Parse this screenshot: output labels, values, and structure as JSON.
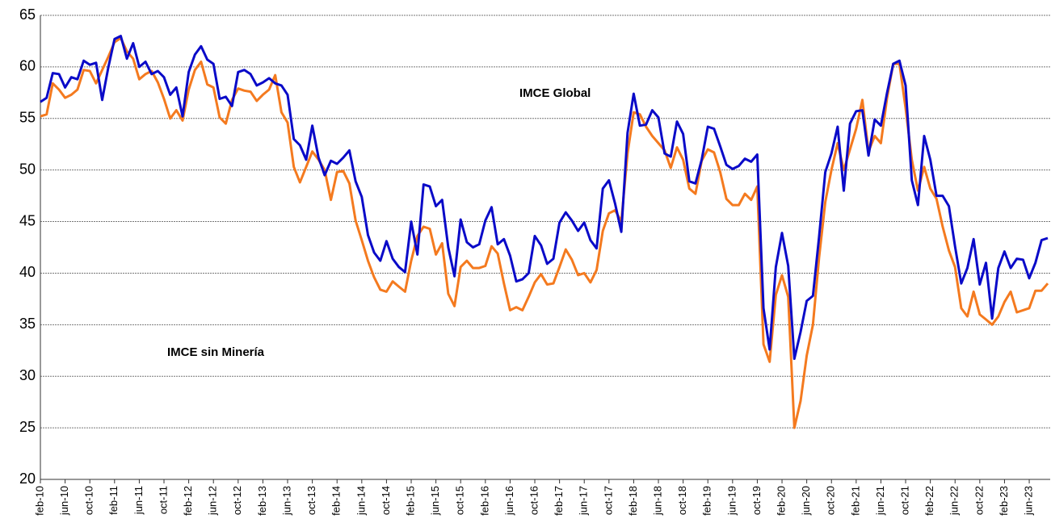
{
  "chart_data": {
    "type": "line",
    "categories": [
      "feb-10",
      null,
      null,
      null,
      "jun-10",
      null,
      null,
      null,
      "oct-10",
      null,
      null,
      null,
      "feb-11",
      null,
      null,
      null,
      "jun-11",
      null,
      null,
      null,
      "oct-11",
      null,
      null,
      null,
      "feb-12",
      null,
      null,
      null,
      "jun-12",
      null,
      null,
      null,
      "oct-12",
      null,
      null,
      null,
      "feb-13",
      null,
      null,
      null,
      "jun-13",
      null,
      null,
      null,
      "oct-13",
      null,
      null,
      null,
      "feb-14",
      null,
      null,
      null,
      "jun-14",
      null,
      null,
      null,
      "oct-14",
      null,
      null,
      null,
      "feb-15",
      null,
      null,
      null,
      "jun-15",
      null,
      null,
      null,
      "oct-15",
      null,
      null,
      null,
      "feb-16",
      null,
      null,
      null,
      "jun-16",
      null,
      null,
      null,
      "oct-16",
      null,
      null,
      null,
      "feb-17",
      null,
      null,
      null,
      "jun-17",
      null,
      null,
      null,
      "oct-17",
      null,
      null,
      null,
      "feb-18",
      null,
      null,
      null,
      "jun-18",
      null,
      null,
      null,
      "oct-18",
      null,
      null,
      null,
      "feb-19",
      null,
      null,
      null,
      "jun-19",
      null,
      null,
      null,
      "oct-19",
      null,
      null,
      null,
      "feb-20",
      null,
      null,
      null,
      "jun-20",
      null,
      null,
      null,
      "oct-20",
      null,
      null,
      null,
      "feb-21",
      null,
      null,
      null,
      "jun-21",
      null,
      null,
      null,
      "oct-21",
      null,
      null,
      null,
      "feb-22",
      null,
      null,
      null,
      "jun-22",
      null,
      null,
      null,
      "oct-22",
      null,
      null,
      null,
      "feb-23",
      null,
      null,
      null,
      "jun-23",
      null,
      null,
      null
    ],
    "series": [
      {
        "name": "IMCE Global",
        "color": "#0a0ac8",
        "values": [
          56.6,
          57.0,
          59.4,
          59.3,
          58.0,
          59.0,
          58.8,
          60.6,
          60.2,
          60.4,
          56.8,
          60.0,
          62.7,
          63.0,
          60.8,
          62.3,
          60.0,
          60.5,
          59.3,
          59.6,
          59.0,
          57.3,
          58.0,
          55.2,
          59.5,
          61.2,
          62.0,
          60.7,
          60.3,
          56.9,
          57.1,
          56.2,
          59.5,
          59.7,
          59.3,
          58.2,
          58.5,
          58.9,
          58.4,
          58.2,
          57.3,
          53.0,
          52.4,
          51.0,
          54.3,
          51.2,
          49.5,
          50.9,
          50.6,
          51.2,
          51.9,
          48.9,
          47.4,
          43.7,
          42.0,
          41.2,
          43.1,
          41.4,
          40.6,
          40.1,
          45.0,
          41.8,
          48.6,
          48.4,
          46.5,
          47.1,
          42.5,
          39.7,
          45.2,
          43.0,
          42.5,
          42.8,
          45.1,
          46.4,
          42.8,
          43.3,
          41.7,
          39.2,
          39.4,
          40.0,
          43.6,
          42.7,
          40.9,
          41.4,
          44.9,
          45.9,
          45.1,
          44.1,
          44.9,
          43.2,
          42.4,
          48.2,
          49.0,
          46.7,
          44.0,
          53.6,
          57.4,
          54.3,
          54.4,
          55.8,
          55.1,
          51.6,
          51.3,
          54.7,
          53.5,
          48.9,
          48.7,
          51.0,
          54.2,
          54.0,
          52.3,
          50.5,
          50.1,
          50.4,
          51.1,
          50.8,
          51.5,
          36.6,
          32.6,
          40.6,
          43.9,
          40.7,
          31.7,
          34.3,
          37.3,
          37.8,
          43.5,
          49.8,
          51.6,
          54.2,
          48.0,
          54.5,
          55.7,
          55.8,
          51.4,
          54.9,
          54.3,
          57.5,
          60.3,
          60.6,
          58.2,
          49.0,
          46.6,
          53.3,
          51.0,
          47.5,
          47.5,
          46.5,
          42.6,
          39.0,
          40.5,
          43.3,
          38.9,
          41.0,
          35.6,
          40.5,
          42.1,
          40.5,
          41.4,
          41.3,
          39.5,
          41.0,
          43.2,
          43.4
        ]
      },
      {
        "name": "IMCE sin Minería",
        "color": "#f47a1f",
        "values": [
          55.2,
          55.4,
          58.4,
          57.8,
          57.0,
          57.3,
          57.8,
          59.7,
          59.6,
          58.4,
          59.7,
          61.0,
          62.4,
          62.8,
          61.5,
          60.8,
          58.8,
          59.3,
          59.6,
          58.5,
          56.9,
          55.0,
          55.8,
          54.8,
          57.8,
          59.7,
          60.5,
          58.3,
          58.0,
          55.1,
          54.5,
          56.8,
          57.9,
          57.7,
          57.6,
          56.7,
          57.3,
          57.8,
          59.2,
          55.6,
          54.6,
          50.3,
          48.8,
          50.3,
          51.8,
          51.0,
          50.0,
          47.1,
          49.8,
          49.9,
          48.7,
          45.1,
          43.2,
          41.2,
          39.6,
          38.4,
          38.2,
          39.2,
          38.7,
          38.2,
          41.2,
          43.6,
          44.5,
          44.3,
          41.8,
          42.9,
          38.0,
          36.8,
          40.6,
          41.2,
          40.5,
          40.5,
          40.7,
          42.6,
          41.9,
          39.0,
          36.4,
          36.7,
          36.4,
          37.7,
          39.1,
          39.9,
          38.9,
          39.0,
          40.6,
          42.3,
          41.3,
          39.8,
          40.0,
          39.1,
          40.3,
          44.1,
          45.8,
          46.1,
          45.0,
          51.6,
          55.6,
          55.4,
          54.2,
          53.3,
          52.6,
          51.9,
          50.2,
          52.2,
          51.0,
          48.2,
          47.7,
          50.9,
          52.0,
          51.7,
          49.8,
          47.2,
          46.6,
          46.6,
          47.7,
          47.1,
          48.4,
          33.1,
          31.4,
          37.9,
          39.8,
          37.7,
          25.0,
          27.6,
          32.0,
          35.0,
          41.5,
          46.9,
          50.0,
          52.6,
          50.0,
          52.0,
          54.0,
          56.8,
          51.8,
          53.3,
          52.6,
          57.0,
          60.3,
          60.3,
          56.0,
          51.0,
          48.0,
          50.3,
          48.2,
          47.2,
          44.5,
          42.2,
          40.6,
          36.6,
          35.8,
          38.2,
          36.0,
          35.5,
          35.0,
          35.8,
          37.2,
          38.2,
          36.2,
          36.4,
          36.6,
          38.3,
          38.3,
          39.0
        ]
      }
    ],
    "ylim": [
      20,
      65
    ],
    "yticks": [
      20,
      25,
      30,
      35,
      40,
      45,
      50,
      55,
      60,
      65
    ],
    "grid": true
  }
}
